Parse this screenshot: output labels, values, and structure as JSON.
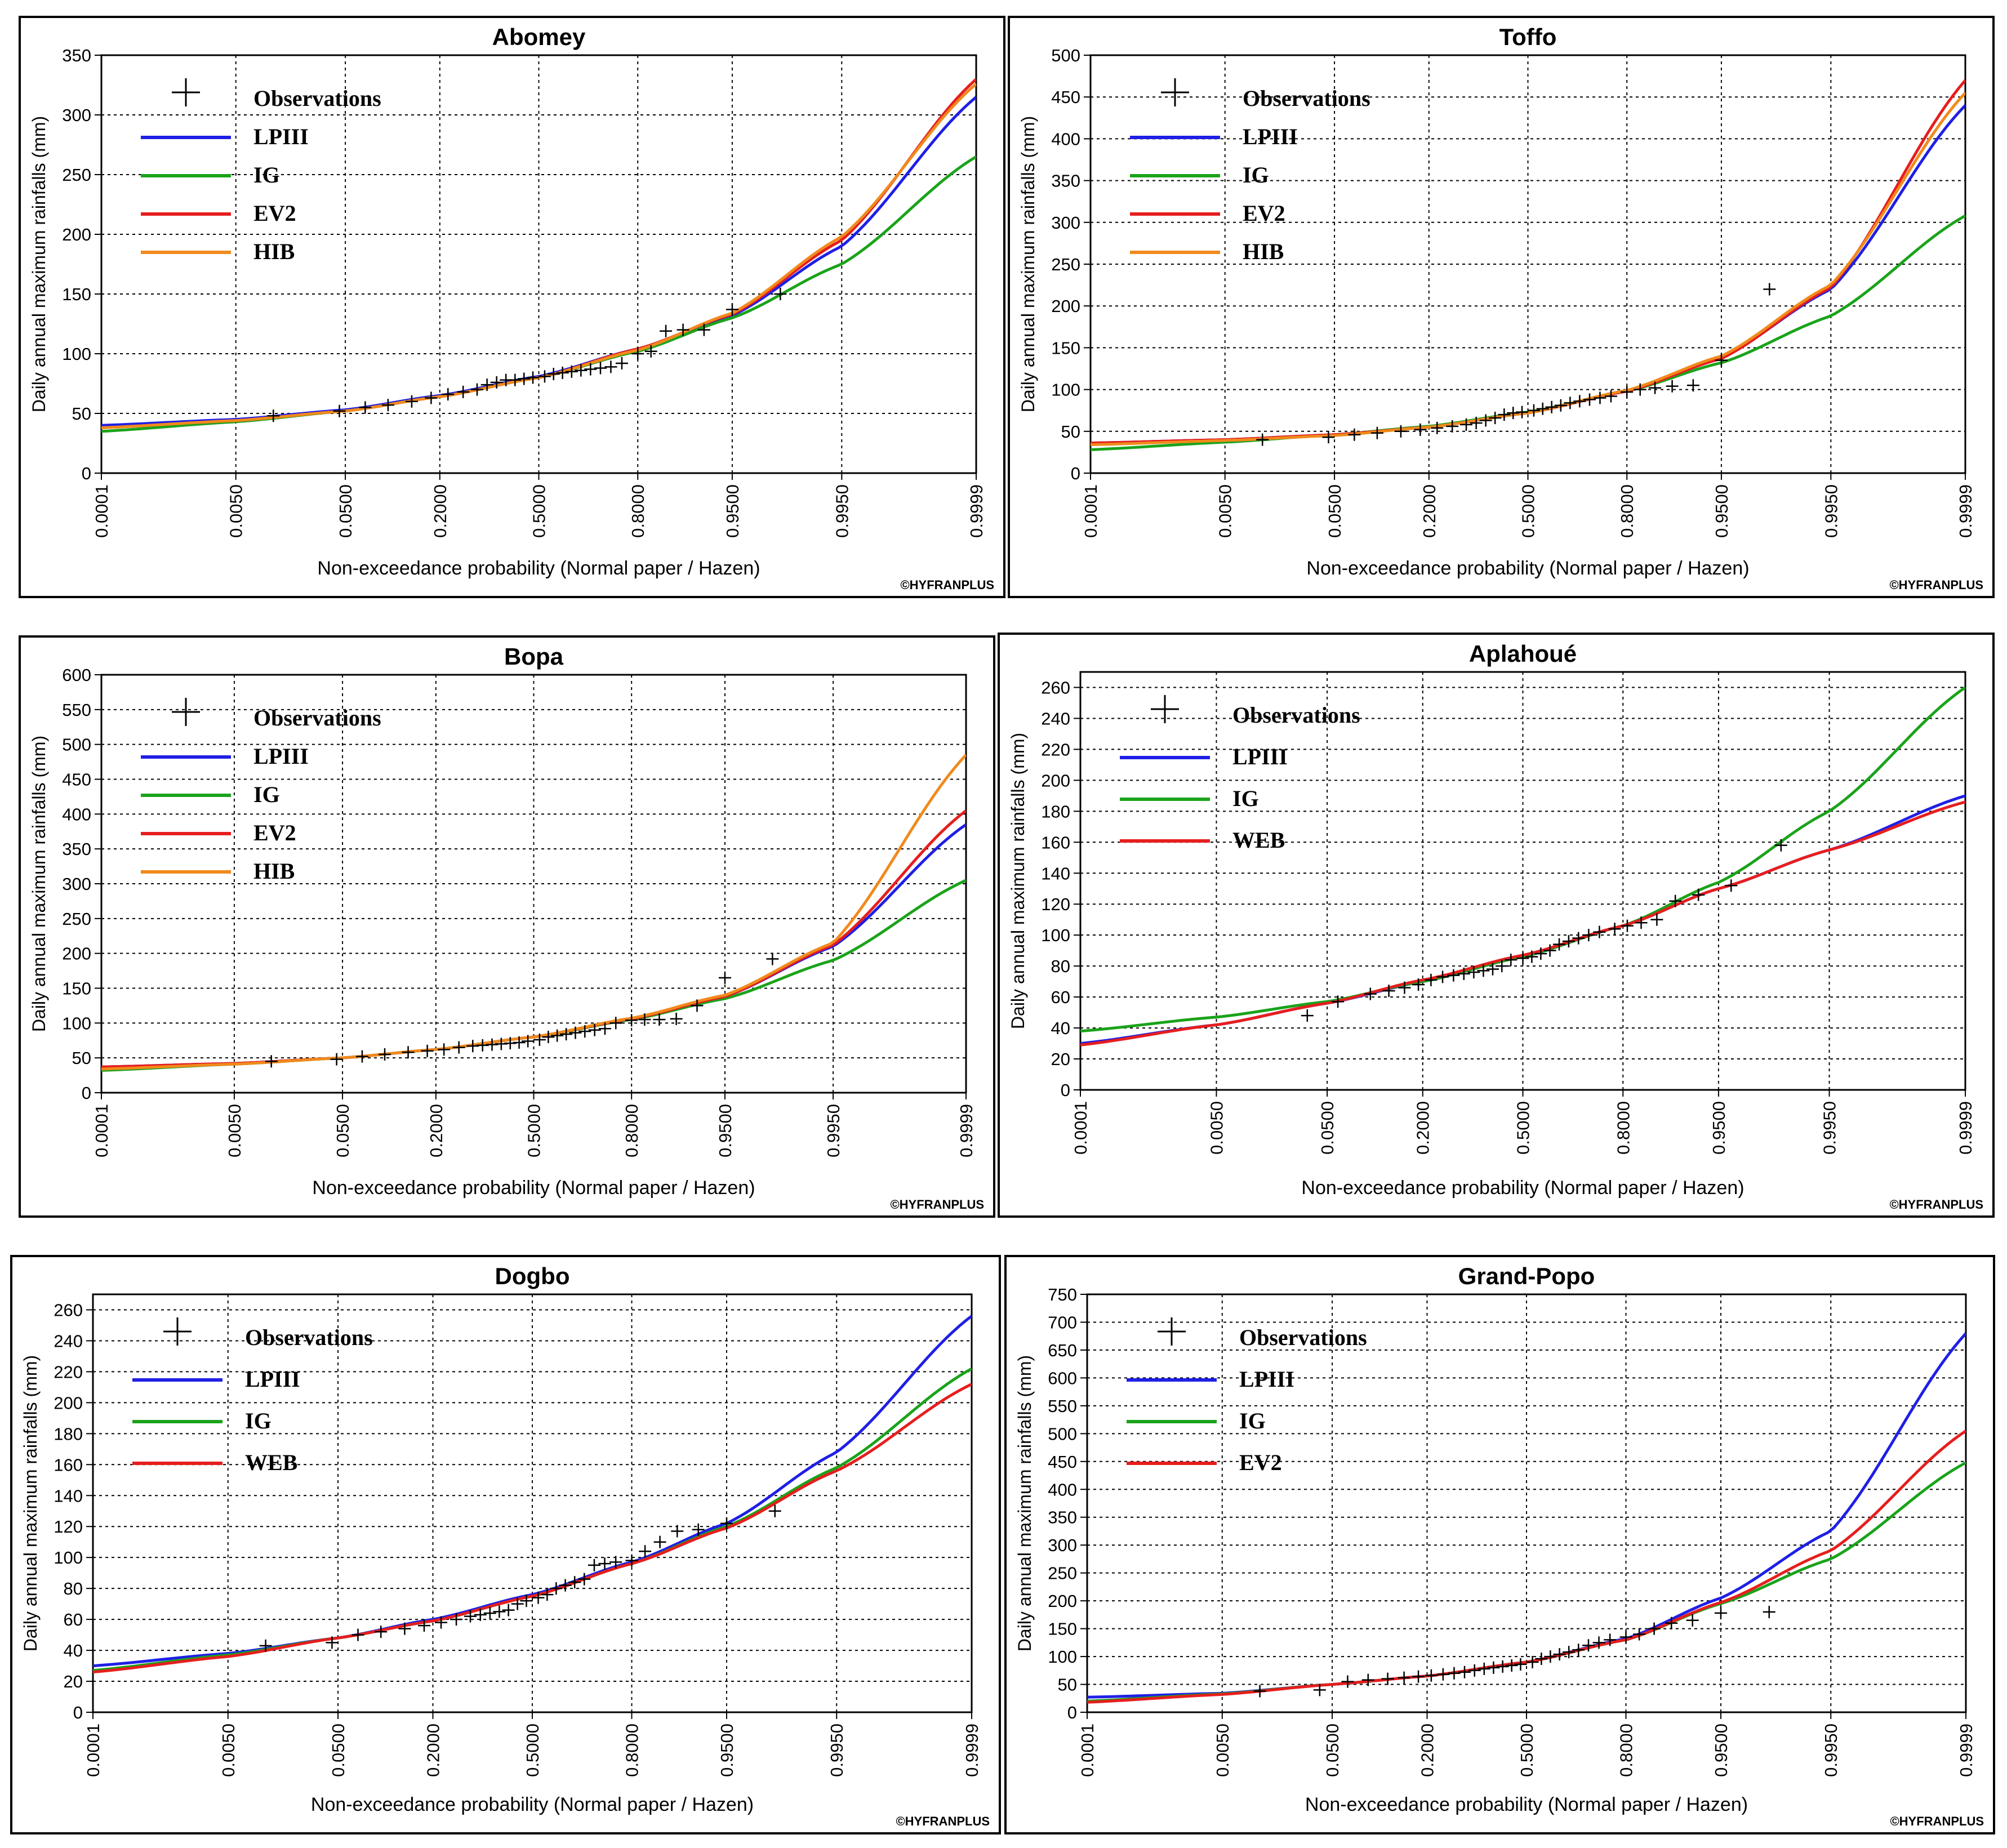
{
  "common": {
    "x_label": "Non-exceedance probability (Normal paper / Hazen)",
    "y_label": "Daily annual maximum rainfalls (mm)",
    "credit": "©HYFRANPLUS",
    "x_ticks": [
      "0.0001",
      "0.0050",
      "0.0500",
      "0.2000",
      "0.5000",
      "0.8000",
      "0.9500",
      "0.9950",
      "0.9999"
    ]
  },
  "colors": {
    "LPIII": "#1f1fe6",
    "IG": "#1aa31a",
    "EV2": "#e61e1e",
    "HIB": "#f08a1c",
    "WEB": "#e61e1e",
    "Observations": "#000000"
  },
  "chart_data": [
    {
      "type": "line",
      "title": "Abomey",
      "xlabel": "Non-exceedance probability (Normal paper / Hazen)",
      "ylabel": "Daily annual maximum rainfalls (mm)",
      "x_scale": "normal-probability",
      "ylim": [
        0,
        350
      ],
      "y_ticks": [
        0,
        50,
        100,
        150,
        200,
        250,
        300,
        350
      ],
      "legend": [
        "Observations",
        "LPIII",
        "IG",
        "EV2",
        "HIB"
      ],
      "series": [
        {
          "name": "LPIII",
          "p": [
            0.0001,
            0.005,
            0.05,
            0.2,
            0.5,
            0.8,
            0.95,
            0.995,
            0.9999
          ],
          "values": [
            40,
            45,
            53,
            65,
            81,
            104,
            132,
            190,
            315
          ]
        },
        {
          "name": "IG",
          "p": [
            0.0001,
            0.005,
            0.05,
            0.2,
            0.5,
            0.8,
            0.95,
            0.995,
            0.9999
          ],
          "values": [
            35,
            43,
            52,
            64,
            80,
            102,
            130,
            175,
            265
          ]
        },
        {
          "name": "EV2",
          "p": [
            0.0001,
            0.005,
            0.05,
            0.2,
            0.5,
            0.8,
            0.95,
            0.995,
            0.9999
          ],
          "values": [
            38,
            44,
            52,
            64,
            80,
            104,
            133,
            195,
            330
          ]
        },
        {
          "name": "HIB",
          "p": [
            0.0001,
            0.005,
            0.05,
            0.2,
            0.5,
            0.8,
            0.95,
            0.995,
            0.9999
          ],
          "values": [
            38,
            44,
            52,
            64,
            80,
            103,
            134,
            198,
            326
          ]
        }
      ],
      "observations": {
        "p": [
          0.012,
          0.045,
          0.07,
          0.1,
          0.14,
          0.18,
          0.22,
          0.26,
          0.3,
          0.33,
          0.36,
          0.39,
          0.42,
          0.45,
          0.48,
          0.52,
          0.55,
          0.58,
          0.61,
          0.64,
          0.67,
          0.7,
          0.73,
          0.76,
          0.8,
          0.83,
          0.86,
          0.89,
          0.92,
          0.95,
          0.98
        ],
        "values": [
          48,
          52,
          55,
          57,
          60,
          63,
          66,
          68,
          70,
          74,
          76,
          78,
          78,
          79,
          80,
          81,
          83,
          84,
          85,
          86,
          87,
          88,
          89,
          92,
          100,
          102,
          119,
          120,
          120,
          137,
          150
        ]
      }
    },
    {
      "type": "line",
      "title": "Toffo",
      "xlabel": "Non-exceedance probability (Normal paper / Hazen)",
      "ylabel": "Daily annual maximum rainfalls (mm)",
      "x_scale": "normal-probability",
      "ylim": [
        0,
        500
      ],
      "y_ticks": [
        0,
        50,
        100,
        150,
        200,
        250,
        300,
        350,
        400,
        450,
        500
      ],
      "legend": [
        "Observations",
        "LPIII",
        "IG",
        "EV2",
        "HIB"
      ],
      "series": [
        {
          "name": "LPIII",
          "p": [
            0.0001,
            0.005,
            0.05,
            0.2,
            0.5,
            0.8,
            0.95,
            0.995,
            0.9999
          ],
          "values": [
            36,
            40,
            46,
            55,
            72,
            98,
            138,
            220,
            440
          ]
        },
        {
          "name": "IG",
          "p": [
            0.0001,
            0.005,
            0.05,
            0.2,
            0.5,
            0.8,
            0.95,
            0.995,
            0.9999
          ],
          "values": [
            28,
            37,
            46,
            56,
            73,
            98,
            132,
            188,
            308
          ]
        },
        {
          "name": "EV2",
          "p": [
            0.0001,
            0.005,
            0.05,
            0.2,
            0.5,
            0.8,
            0.95,
            0.995,
            0.9999
          ],
          "values": [
            36,
            40,
            46,
            55,
            72,
            98,
            137,
            222,
            470
          ]
        },
        {
          "name": "HIB",
          "p": [
            0.0001,
            0.005,
            0.05,
            0.2,
            0.5,
            0.8,
            0.95,
            0.995,
            0.9999
          ],
          "values": [
            34,
            39,
            45,
            55,
            72,
            99,
            140,
            225,
            455
          ]
        }
      ],
      "observations": {
        "p": [
          0.012,
          0.045,
          0.07,
          0.1,
          0.14,
          0.18,
          0.22,
          0.26,
          0.3,
          0.33,
          0.36,
          0.39,
          0.42,
          0.45,
          0.48,
          0.52,
          0.55,
          0.58,
          0.61,
          0.64,
          0.67,
          0.7,
          0.73,
          0.76,
          0.8,
          0.83,
          0.86,
          0.89,
          0.92,
          0.95,
          0.98
        ],
        "values": [
          40,
          43,
          46,
          48,
          50,
          52,
          54,
          56,
          58,
          60,
          63,
          66,
          70,
          72,
          73,
          75,
          77,
          79,
          81,
          84,
          86,
          88,
          90,
          92,
          97,
          100,
          102,
          104,
          105,
          135,
          220
        ]
      }
    },
    {
      "type": "line",
      "title": "Bopa",
      "xlabel": "Non-exceedance probability (Normal paper / Hazen)",
      "ylabel": "Daily annual maximum rainfalls (mm)",
      "x_scale": "normal-probability",
      "ylim": [
        0,
        600
      ],
      "y_ticks": [
        0,
        50,
        100,
        150,
        200,
        250,
        300,
        350,
        400,
        450,
        500,
        550,
        600
      ],
      "legend": [
        "Observations",
        "LPIII",
        "IG",
        "EV2",
        "HIB"
      ],
      "series": [
        {
          "name": "LPIII",
          "p": [
            0.0001,
            0.005,
            0.05,
            0.2,
            0.5,
            0.8,
            0.95,
            0.995,
            0.9999
          ],
          "values": [
            37,
            42,
            50,
            62,
            80,
            106,
            138,
            210,
            385
          ]
        },
        {
          "name": "IG",
          "p": [
            0.0001,
            0.005,
            0.05,
            0.2,
            0.5,
            0.8,
            0.95,
            0.995,
            0.9999
          ],
          "values": [
            32,
            41,
            50,
            62,
            80,
            105,
            135,
            190,
            305
          ]
        },
        {
          "name": "EV2",
          "p": [
            0.0001,
            0.005,
            0.05,
            0.2,
            0.5,
            0.8,
            0.95,
            0.995,
            0.9999
          ],
          "values": [
            37,
            42,
            50,
            62,
            80,
            106,
            138,
            212,
            405
          ]
        },
        {
          "name": "HIB",
          "p": [
            0.0001,
            0.005,
            0.05,
            0.2,
            0.5,
            0.8,
            0.95,
            0.995,
            0.9999
          ],
          "values": [
            34,
            41,
            50,
            62,
            80,
            107,
            140,
            215,
            485
          ]
        }
      ],
      "observations": {
        "p": [
          0.012,
          0.045,
          0.07,
          0.1,
          0.14,
          0.18,
          0.22,
          0.26,
          0.3,
          0.33,
          0.36,
          0.39,
          0.42,
          0.45,
          0.48,
          0.52,
          0.55,
          0.58,
          0.61,
          0.64,
          0.67,
          0.7,
          0.73,
          0.76,
          0.8,
          0.83,
          0.86,
          0.89,
          0.92,
          0.95,
          0.98
        ],
        "values": [
          45,
          48,
          52,
          55,
          58,
          60,
          62,
          65,
          67,
          68,
          69,
          70,
          71,
          72,
          74,
          76,
          80,
          82,
          84,
          86,
          88,
          90,
          92,
          100,
          104,
          105,
          105,
          106,
          125,
          165,
          192
        ]
      }
    },
    {
      "type": "line",
      "title": "Aplahoué",
      "xlabel": "Non-exceedance probability (Normal paper / Hazen)",
      "ylabel": "Daily annual maximum rainfalls (mm)",
      "x_scale": "normal-probability",
      "ylim": [
        0,
        270
      ],
      "y_ticks": [
        0,
        20,
        40,
        60,
        80,
        100,
        120,
        140,
        160,
        180,
        200,
        220,
        240,
        260
      ],
      "legend": [
        "Observations",
        "LPIII",
        "IG",
        "WEB"
      ],
      "series": [
        {
          "name": "LPIII",
          "p": [
            0.0001,
            0.005,
            0.05,
            0.2,
            0.5,
            0.8,
            0.95,
            0.995,
            0.9999
          ],
          "values": [
            30,
            42,
            56,
            70,
            86,
            106,
            130,
            155,
            190
          ]
        },
        {
          "name": "IG",
          "p": [
            0.0001,
            0.005,
            0.05,
            0.2,
            0.5,
            0.8,
            0.95,
            0.995,
            0.9999
          ],
          "values": [
            38,
            47,
            57,
            70,
            86,
            106,
            134,
            180,
            260
          ]
        },
        {
          "name": "WEB",
          "p": [
            0.0001,
            0.005,
            0.05,
            0.2,
            0.5,
            0.8,
            0.95,
            0.995,
            0.9999
          ],
          "values": [
            29,
            42,
            56,
            71,
            87,
            106,
            130,
            155,
            186
          ]
        }
      ],
      "observations": {
        "p": [
          0.035,
          0.06,
          0.1,
          0.13,
          0.16,
          0.19,
          0.22,
          0.25,
          0.28,
          0.31,
          0.34,
          0.37,
          0.4,
          0.43,
          0.46,
          0.5,
          0.53,
          0.56,
          0.59,
          0.62,
          0.65,
          0.68,
          0.71,
          0.74,
          0.78,
          0.81,
          0.84,
          0.87,
          0.9,
          0.93,
          0.96,
          0.985
        ],
        "values": [
          48,
          57,
          62,
          64,
          66,
          68,
          71,
          73,
          74,
          75,
          76,
          77,
          78,
          80,
          84,
          85,
          86,
          88,
          90,
          94,
          96,
          98,
          100,
          102,
          104,
          106,
          108,
          110,
          122,
          126,
          132,
          158
        ]
      }
    },
    {
      "type": "line",
      "title": "Dogbo",
      "xlabel": "Non-exceedance probability (Normal paper / Hazen)",
      "ylabel": "Daily annual maximum rainfalls (mm)",
      "x_scale": "normal-probability",
      "ylim": [
        0,
        270
      ],
      "y_ticks": [
        0,
        20,
        40,
        60,
        80,
        100,
        120,
        140,
        160,
        180,
        200,
        220,
        240,
        260
      ],
      "legend": [
        "Observations",
        "LPIII",
        "IG",
        "WEB"
      ],
      "series": [
        {
          "name": "LPIII",
          "p": [
            0.0001,
            0.005,
            0.05,
            0.2,
            0.5,
            0.8,
            0.95,
            0.995,
            0.9999
          ],
          "values": [
            30,
            38,
            48,
            60,
            76,
            97,
            122,
            168,
            256
          ]
        },
        {
          "name": "IG",
          "p": [
            0.0001,
            0.005,
            0.05,
            0.2,
            0.5,
            0.8,
            0.95,
            0.995,
            0.9999
          ],
          "values": [
            27,
            37,
            48,
            59,
            75,
            96,
            120,
            158,
            222
          ]
        },
        {
          "name": "WEB",
          "p": [
            0.0001,
            0.005,
            0.05,
            0.2,
            0.5,
            0.8,
            0.95,
            0.995,
            0.9999
          ],
          "values": [
            26,
            36,
            48,
            59,
            75,
            96,
            119,
            156,
            212
          ]
        }
      ],
      "observations": {
        "p": [
          0.012,
          0.045,
          0.07,
          0.1,
          0.14,
          0.18,
          0.22,
          0.26,
          0.3,
          0.33,
          0.36,
          0.39,
          0.42,
          0.45,
          0.48,
          0.52,
          0.55,
          0.58,
          0.61,
          0.64,
          0.67,
          0.7,
          0.73,
          0.76,
          0.8,
          0.83,
          0.86,
          0.89,
          0.92,
          0.95,
          0.98
        ],
        "values": [
          43,
          45,
          50,
          52,
          54,
          56,
          58,
          60,
          62,
          63,
          64,
          65,
          66,
          70,
          72,
          74,
          76,
          80,
          82,
          84,
          86,
          95,
          96,
          97,
          98,
          104,
          110,
          117,
          118,
          122,
          130
        ]
      }
    },
    {
      "type": "line",
      "title": "Grand-Popo",
      "xlabel": "Non-exceedance probability (Normal paper / Hazen)",
      "ylabel": "Daily annual maximum rainfalls (mm)",
      "x_scale": "normal-probability",
      "ylim": [
        0,
        750
      ],
      "y_ticks": [
        0,
        50,
        100,
        150,
        200,
        250,
        300,
        350,
        400,
        450,
        500,
        550,
        600,
        650,
        700,
        750
      ],
      "legend": [
        "Observations",
        "LPIII",
        "IG",
        "EV2"
      ],
      "series": [
        {
          "name": "LPIII",
          "p": [
            0.0001,
            0.005,
            0.05,
            0.2,
            0.5,
            0.8,
            0.95,
            0.995,
            0.9999
          ],
          "values": [
            27,
            34,
            50,
            65,
            90,
            132,
            205,
            325,
            680
          ]
        },
        {
          "name": "IG",
          "p": [
            0.0001,
            0.005,
            0.05,
            0.2,
            0.5,
            0.8,
            0.95,
            0.995,
            0.9999
          ],
          "values": [
            20,
            33,
            50,
            65,
            90,
            130,
            195,
            275,
            448
          ]
        },
        {
          "name": "EV2",
          "p": [
            0.0001,
            0.005,
            0.05,
            0.2,
            0.5,
            0.8,
            0.95,
            0.995,
            0.9999
          ],
          "values": [
            18,
            32,
            50,
            65,
            90,
            130,
            197,
            290,
            505
          ]
        }
      ],
      "observations": {
        "p": [
          0.012,
          0.04,
          0.065,
          0.09,
          0.12,
          0.15,
          0.18,
          0.21,
          0.24,
          0.27,
          0.3,
          0.33,
          0.36,
          0.39,
          0.42,
          0.45,
          0.48,
          0.52,
          0.55,
          0.58,
          0.61,
          0.64,
          0.67,
          0.7,
          0.73,
          0.76,
          0.8,
          0.83,
          0.86,
          0.89,
          0.92,
          0.95,
          0.98
        ],
        "values": [
          38,
          40,
          55,
          58,
          60,
          62,
          64,
          66,
          68,
          70,
          72,
          75,
          78,
          80,
          82,
          84,
          86,
          90,
          96,
          100,
          104,
          108,
          112,
          120,
          125,
          130,
          135,
          140,
          150,
          160,
          165,
          178,
          180
        ]
      }
    }
  ]
}
